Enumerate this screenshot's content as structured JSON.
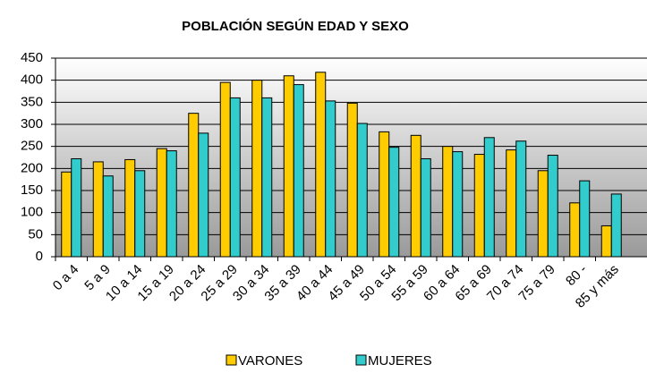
{
  "chart_data": {
    "type": "bar",
    "title": "POBLACIÓN SEGÚN EDAD Y SEXO",
    "categories": [
      "0 a 4",
      "5 a 9",
      "10 a 14",
      "15 a 19",
      "20 a 24",
      "25 a 29",
      "30 a 34",
      "35 a 39",
      "40 a 44",
      "45 a 49",
      "50 a 54",
      "55 a 59",
      "60 a 64",
      "65 a 69",
      "70 a 74",
      "75 a 79",
      "80 -",
      "85 y más"
    ],
    "series": [
      {
        "name": "VARONES",
        "color": "#ffcc00",
        "values": [
          192,
          215,
          220,
          245,
          325,
          395,
          400,
          410,
          418,
          348,
          283,
          275,
          250,
          232,
          242,
          195,
          122,
          70
        ]
      },
      {
        "name": "MUJERES",
        "color": "#33cccc",
        "values": [
          222,
          183,
          195,
          240,
          280,
          360,
          360,
          390,
          353,
          302,
          248,
          222,
          238,
          270,
          262,
          230,
          172,
          142
        ]
      }
    ],
    "ylim": [
      0,
      450
    ],
    "yticks": [
      0,
      50,
      100,
      150,
      200,
      250,
      300,
      350,
      400,
      450
    ],
    "grid": true,
    "legend": "bottom"
  }
}
